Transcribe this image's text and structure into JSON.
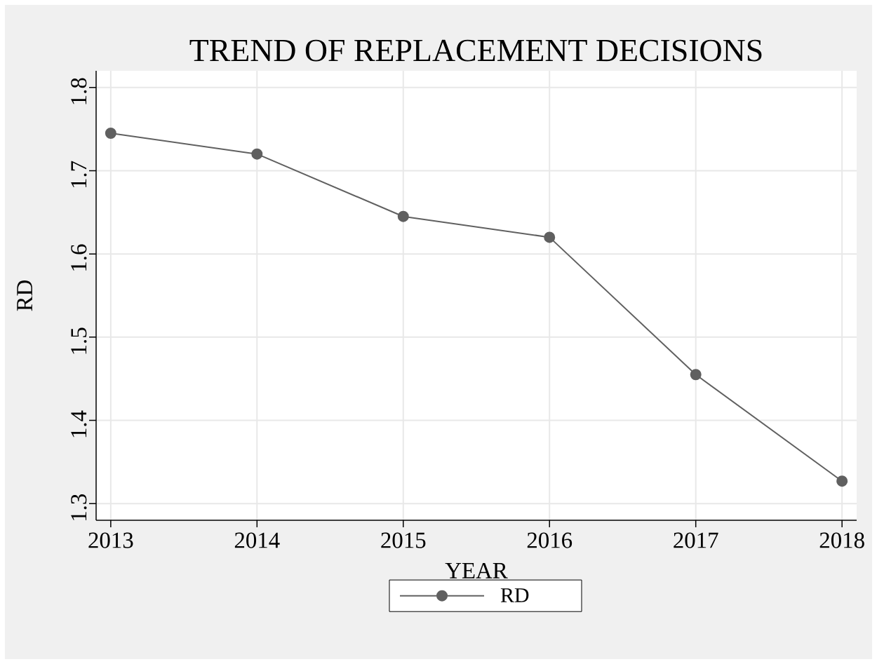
{
  "chart_data": {
    "type": "line",
    "title": "TREND OF REPLACEMENT DECISIONS",
    "xlabel": "YEAR",
    "ylabel": "RD",
    "x": [
      2013,
      2014,
      2015,
      2016,
      2017,
      2018
    ],
    "series": [
      {
        "name": "RD",
        "color": "#606060",
        "values": [
          1.745,
          1.72,
          1.645,
          1.62,
          1.455,
          1.327
        ]
      }
    ],
    "xlim": [
      2012.9,
      2018.1
    ],
    "ylim": [
      1.28,
      1.82
    ],
    "xticks": [
      2013,
      2014,
      2015,
      2016,
      2017,
      2018
    ],
    "yticks": [
      1.3,
      1.4,
      1.5,
      1.6,
      1.7,
      1.8
    ],
    "grid": true,
    "legend": "bottom",
    "marker": "circle",
    "line_style": "solid"
  }
}
